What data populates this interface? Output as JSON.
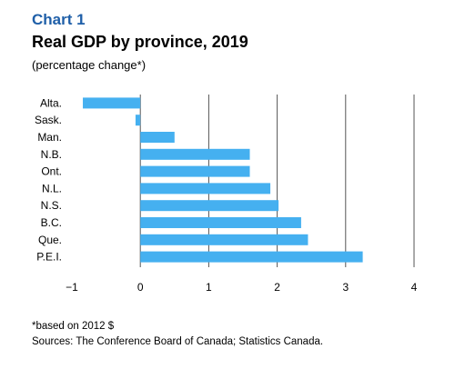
{
  "header": {
    "chart_number": "Chart 1",
    "title": "Real GDP by province, 2019",
    "subtitle": "(percentage change*)"
  },
  "footnotes": {
    "note": "*based on 2012 $",
    "sources": "Sources: The Conference Board of Canada; Statistics Canada."
  },
  "colors": {
    "bar": "#45b0f0",
    "grid": "#555555"
  },
  "chart_data": {
    "type": "bar",
    "orientation": "horizontal",
    "title": "Real GDP by province, 2019",
    "subtitle": "(percentage change*)",
    "categories": [
      "Alta.",
      "Sask.",
      "Man.",
      "N.B.",
      "Ont.",
      "N.L.",
      "N.S.",
      "B.C.",
      "Que.",
      "P.E.I."
    ],
    "values": [
      -0.84,
      -0.07,
      0.5,
      1.6,
      1.6,
      1.9,
      2.02,
      2.35,
      2.45,
      3.25
    ],
    "xlim": [
      -1,
      4
    ],
    "xticks": [
      "−1",
      "0",
      "1",
      "2",
      "3",
      "4"
    ],
    "xtick_values": [
      -1,
      0,
      1,
      2,
      3,
      4
    ],
    "grid": "vertical"
  }
}
